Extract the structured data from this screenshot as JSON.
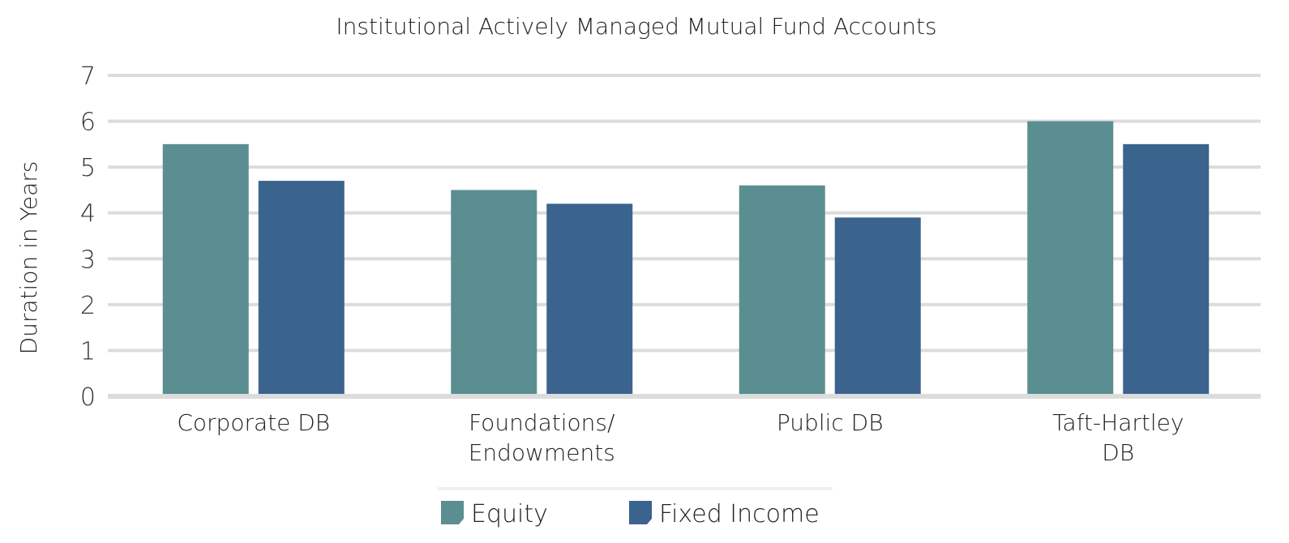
{
  "chart_data": {
    "type": "bar",
    "title": "Institutional Actively Managed Mutual Fund Accounts",
    "xlabel": "",
    "ylabel": "Duration in Years",
    "ylim": [
      0,
      7
    ],
    "yticks": [
      0,
      1,
      2,
      3,
      4,
      5,
      6,
      7
    ],
    "grid": true,
    "legend_position": "bottom",
    "categories": [
      [
        "Corporate DB"
      ],
      [
        "Foundations/",
        "Endowments"
      ],
      [
        "Public DB"
      ],
      [
        "Taft-Hartley",
        "DB"
      ]
    ],
    "series": [
      {
        "name": "Equity",
        "color": "#5a8e91",
        "values": [
          5.5,
          4.5,
          4.6,
          6.0
        ]
      },
      {
        "name": "Fixed Income",
        "color": "#3a648e",
        "values": [
          4.7,
          4.2,
          3.9,
          5.5
        ]
      }
    ]
  }
}
